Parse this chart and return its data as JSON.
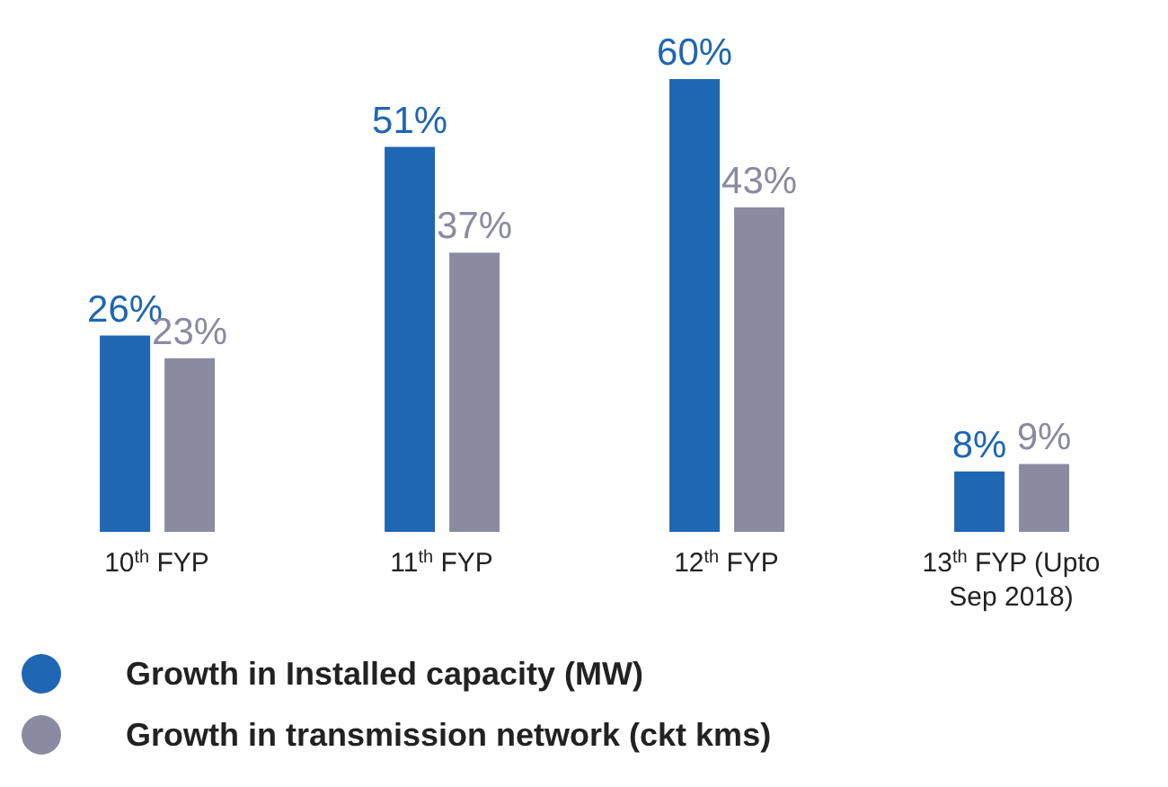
{
  "chart_data": {
    "type": "bar",
    "categories": [
      "10$^{th}$ FYP",
      "11$^{th}$ FYP",
      "12$^{th}$ FYP",
      "13$^{th}$ FYP (Upto Sep 2018)"
    ],
    "series": [
      {
        "name": "Growth in Installed capacity (MW)",
        "color": "#1f66b3",
        "values": [
          26,
          51,
          60,
          8
        ],
        "value_labels": [
          "26%",
          "51%",
          "60%",
          "8%"
        ]
      },
      {
        "name": "Growth in transmission network (ckt kms)",
        "color": "#8a8ba0",
        "values": [
          23,
          37,
          43,
          9
        ],
        "value_labels": [
          "23%",
          "37%",
          "43%",
          "9%"
        ]
      }
    ],
    "legend": "bottom",
    "grid": false
  }
}
